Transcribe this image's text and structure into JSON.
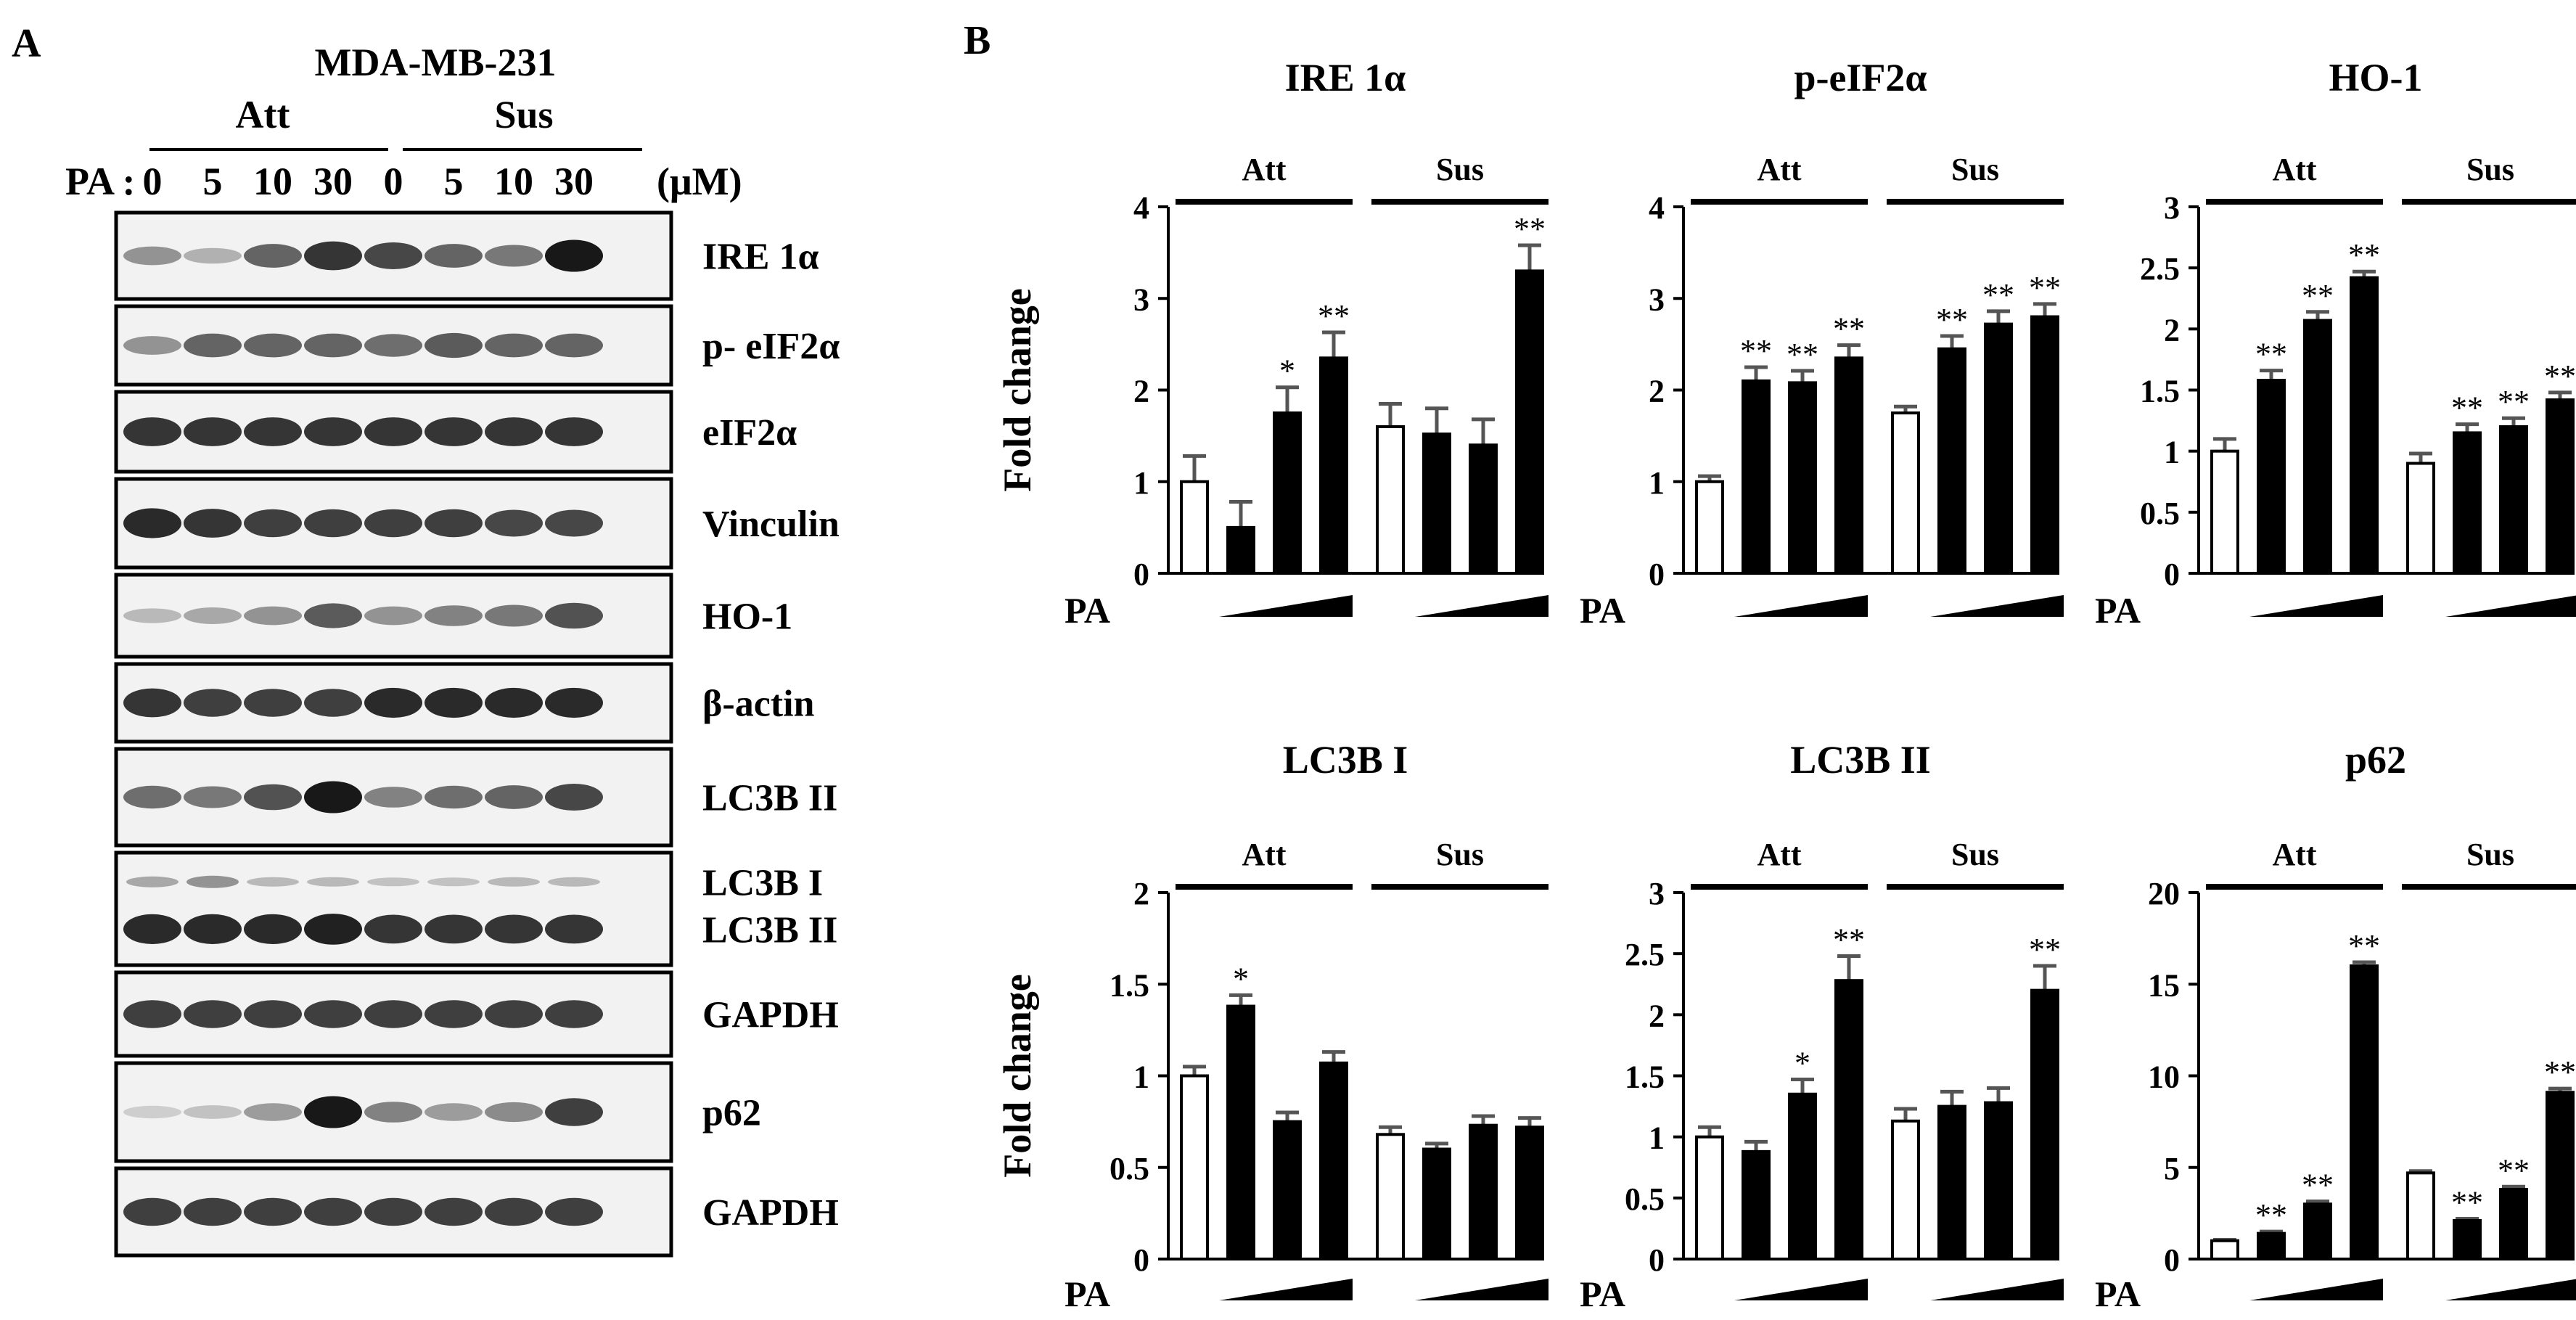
{
  "colors": {
    "background": "#ffffff",
    "ink": "#000000",
    "filled_bar": "#000000",
    "open_bar": "#ffffff",
    "error_bar": "#555555",
    "blot_bg": "#f2f2f2",
    "band": "#111111"
  },
  "panel_a": {
    "label": "A",
    "cell_line": "MDA-MB-231",
    "groups": [
      "Att",
      "Sus"
    ],
    "pa_label": "PA :",
    "unit": "(μM)",
    "doses": [
      "0",
      "5",
      "10",
      "30",
      "0",
      "5",
      "10",
      "30"
    ],
    "blots": [
      {
        "id": "ire1a",
        "labels": [
          "IRE 1α"
        ],
        "bands": [
          0.35,
          0.2,
          0.6,
          0.85,
          0.75,
          0.6,
          0.5,
          1.0
        ]
      },
      {
        "id": "peif2a",
        "labels": [
          "p- eIF2α"
        ],
        "bands": [
          0.35,
          0.6,
          0.6,
          0.6,
          0.55,
          0.65,
          0.6,
          0.6
        ]
      },
      {
        "id": "eif2a",
        "labels": [
          "eIF2α"
        ],
        "bands": [
          0.85,
          0.85,
          0.85,
          0.85,
          0.85,
          0.85,
          0.85,
          0.85
        ]
      },
      {
        "id": "vinculin",
        "labels": [
          "Vinculin"
        ],
        "bands": [
          0.9,
          0.85,
          0.8,
          0.8,
          0.8,
          0.8,
          0.75,
          0.75
        ]
      },
      {
        "id": "ho1",
        "labels": [
          "HO-1"
        ],
        "bands": [
          0.15,
          0.25,
          0.35,
          0.65,
          0.35,
          0.45,
          0.5,
          0.7
        ]
      },
      {
        "id": "bactin",
        "labels": [
          "β-actin"
        ],
        "bands": [
          0.85,
          0.8,
          0.8,
          0.8,
          0.9,
          0.9,
          0.9,
          0.9
        ]
      },
      {
        "id": "lc3b2",
        "labels": [
          "LC3B II"
        ],
        "bands": [
          0.55,
          0.5,
          0.7,
          1.0,
          0.45,
          0.55,
          0.6,
          0.75
        ]
      },
      {
        "id": "lc3b",
        "labels": [
          "LC3B I",
          "LC3B II"
        ],
        "bands": [
          0.9,
          0.9,
          0.9,
          0.95,
          0.85,
          0.85,
          0.85,
          0.85
        ],
        "upper_bands": [
          0.25,
          0.35,
          0.15,
          0.15,
          0.1,
          0.1,
          0.15,
          0.15
        ]
      },
      {
        "id": "gapdh1",
        "labels": [
          "GAPDH"
        ],
        "bands": [
          0.8,
          0.8,
          0.8,
          0.8,
          0.8,
          0.8,
          0.8,
          0.8
        ]
      },
      {
        "id": "p62",
        "labels": [
          "p62"
        ],
        "bands": [
          0.05,
          0.1,
          0.3,
          1.0,
          0.45,
          0.3,
          0.4,
          0.8
        ]
      },
      {
        "id": "gapdh2",
        "labels": [
          "GAPDH"
        ],
        "bands": [
          0.8,
          0.8,
          0.8,
          0.8,
          0.8,
          0.8,
          0.8,
          0.8
        ]
      }
    ]
  },
  "panel_b": {
    "label": "B",
    "ylabel": "Fold change",
    "x_label": "PA",
    "groups": [
      "Att",
      "Sus"
    ]
  },
  "chart_data": [
    {
      "type": "bar",
      "title": "IRE 1α",
      "ylabel": "Fold change",
      "ylim": [
        0,
        4
      ],
      "yticks": [
        "0",
        "1",
        "2",
        "3",
        "4"
      ],
      "ytick_values": [
        0,
        1,
        2,
        3,
        4
      ],
      "groups": [
        "Att",
        "Sus"
      ],
      "x_label": "PA",
      "values": [
        1.0,
        0.5,
        1.75,
        2.35,
        1.6,
        1.52,
        1.4,
        3.3
      ],
      "errors": [
        0.28,
        0.28,
        0.28,
        0.28,
        0.25,
        0.28,
        0.28,
        0.28
      ],
      "sig": [
        "",
        "",
        "*",
        "**",
        "",
        "",
        "",
        "**"
      ]
    },
    {
      "type": "bar",
      "title": "p-eIF2α",
      "ylabel": "",
      "ylim": [
        0,
        4
      ],
      "yticks": [
        "0",
        "1",
        "2",
        "3",
        "4"
      ],
      "ytick_values": [
        0,
        1,
        2,
        3,
        4
      ],
      "groups": [
        "Att",
        "Sus"
      ],
      "x_label": "PA",
      "values": [
        1.0,
        2.1,
        2.08,
        2.35,
        1.75,
        2.45,
        2.72,
        2.8
      ],
      "errors": [
        0.06,
        0.15,
        0.13,
        0.14,
        0.07,
        0.14,
        0.14,
        0.14
      ],
      "sig": [
        "",
        "**",
        "**",
        "**",
        "",
        "**",
        "**",
        "**"
      ]
    },
    {
      "type": "bar",
      "title": "HO-1",
      "ylabel": "",
      "ylim": [
        0,
        3
      ],
      "yticks": [
        "0",
        "0.5",
        "1",
        "1.5",
        "2",
        "2.5",
        "3"
      ],
      "ytick_values": [
        0,
        0.5,
        1,
        1.5,
        2,
        2.5,
        3
      ],
      "groups": [
        "Att",
        "Sus"
      ],
      "x_label": "PA",
      "values": [
        1.0,
        1.58,
        2.07,
        2.42,
        0.9,
        1.15,
        1.2,
        1.42
      ],
      "errors": [
        0.1,
        0.08,
        0.07,
        0.05,
        0.08,
        0.07,
        0.07,
        0.06
      ],
      "sig": [
        "",
        "**",
        "**",
        "**",
        "",
        "**",
        "**",
        "**"
      ]
    },
    {
      "type": "bar",
      "title": "LC3B I",
      "ylabel": "Fold change",
      "ylim": [
        0,
        2
      ],
      "yticks": [
        "0",
        "0.5",
        "1",
        "1.5",
        "2"
      ],
      "ytick_values": [
        0,
        0.5,
        1,
        1.5,
        2
      ],
      "groups": [
        "Att",
        "Sus"
      ],
      "x_label": "PA",
      "values": [
        1.0,
        1.38,
        0.75,
        1.07,
        0.68,
        0.6,
        0.73,
        0.72
      ],
      "errors": [
        0.05,
        0.06,
        0.05,
        0.06,
        0.04,
        0.03,
        0.05,
        0.05
      ],
      "sig": [
        "",
        "*",
        "",
        "",
        "",
        "",
        "",
        ""
      ]
    },
    {
      "type": "bar",
      "title": "LC3B II",
      "ylabel": "",
      "ylim": [
        0,
        3
      ],
      "yticks": [
        "0",
        "0.5",
        "1",
        "1.5",
        "2",
        "2.5",
        "3"
      ],
      "ytick_values": [
        0,
        0.5,
        1,
        1.5,
        2,
        2.5,
        3
      ],
      "groups": [
        "Att",
        "Sus"
      ],
      "x_label": "PA",
      "values": [
        1.0,
        0.88,
        1.35,
        2.28,
        1.13,
        1.25,
        1.28,
        2.2
      ],
      "errors": [
        0.08,
        0.08,
        0.12,
        0.2,
        0.1,
        0.12,
        0.12,
        0.2
      ],
      "sig": [
        "",
        "",
        "*",
        "**",
        "",
        "",
        "",
        "**"
      ]
    },
    {
      "type": "bar",
      "title": "p62",
      "ylabel": "",
      "ylim": [
        0,
        20
      ],
      "yticks": [
        "0",
        "5",
        "10",
        "15",
        "20"
      ],
      "ytick_values": [
        0,
        5,
        10,
        15,
        20
      ],
      "groups": [
        "Att",
        "Sus"
      ],
      "x_label": "PA",
      "values": [
        1.0,
        1.4,
        3.0,
        16.0,
        4.7,
        2.1,
        3.8,
        9.1
      ],
      "errors": [
        0.05,
        0.1,
        0.15,
        0.2,
        0.1,
        0.1,
        0.15,
        0.2
      ],
      "sig": [
        "",
        "**",
        "**",
        "**",
        "",
        "**",
        "**",
        "**"
      ]
    }
  ]
}
